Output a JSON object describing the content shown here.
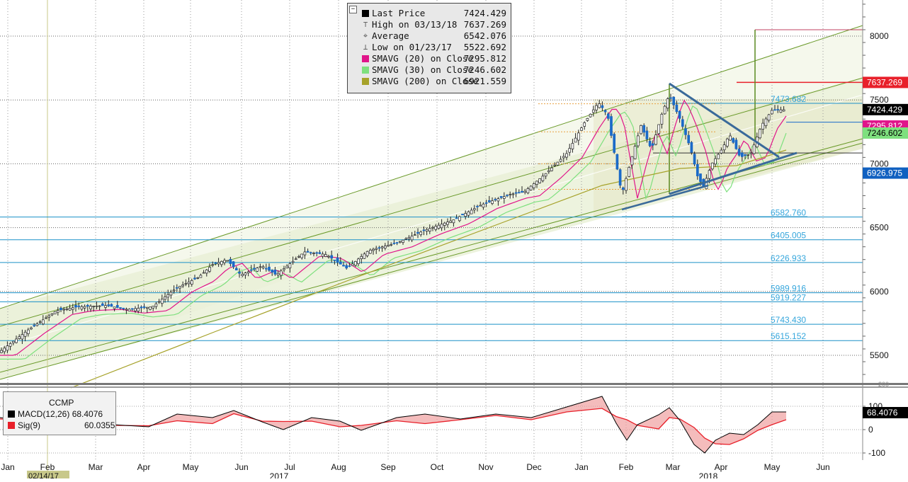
{
  "chart_data": [
    {
      "type": "candlestick",
      "ticker": "CCMP",
      "ylim": [
        5200,
        8250
      ],
      "y_ticks": [
        5500,
        6000,
        6500,
        7000,
        7500,
        8000
      ],
      "x_labels": [
        "Jan",
        "Feb",
        "Mar",
        "Apr",
        "May",
        "Jun",
        "Jul",
        "Aug",
        "Sep",
        "Oct",
        "Nov",
        "Dec",
        "Jan",
        "Feb",
        "Mar",
        "Apr",
        "May",
        "Jun"
      ],
      "year_labels": [
        "2017",
        "2018"
      ],
      "crosshair_date": "02/14/17",
      "legend": [
        {
          "name": "Last Price",
          "value": "7424.429",
          "color": "#000000",
          "icon": "square"
        },
        {
          "name": "High on 03/13/18",
          "value": "7637.269",
          "color": "#555555",
          "icon": "high-marker"
        },
        {
          "name": "Average",
          "value": "6542.076",
          "color": "#555555",
          "icon": "average-marker"
        },
        {
          "name": "Low on 01/23/17",
          "value": "5522.692",
          "color": "#555555",
          "icon": "low-marker"
        },
        {
          "name": "SMAVG (20) on Close",
          "value": "7295.812",
          "color": "#e0158a",
          "icon": "square"
        },
        {
          "name": "SMAVG (30) on Close",
          "value": "7246.602",
          "color": "#7ee07e",
          "icon": "square"
        },
        {
          "name": "SMAVG (200) on Close",
          "value": "6921.559",
          "color": "#a6a22a",
          "icon": "square"
        }
      ],
      "right_axis_tags": [
        {
          "text": "7637.269",
          "value": 7637.269,
          "bg": "#e8202a",
          "fg": "#ffffff"
        },
        {
          "text": "7424.429",
          "value": 7424.429,
          "bg": "#000000",
          "fg": "#ffffff"
        },
        {
          "text": "7295.812",
          "value": 7295.812,
          "bg": "#e0158a",
          "fg": "#ffffff"
        },
        {
          "text": "7246.602",
          "value": 7246.602,
          "bg": "#7ee07e",
          "fg": "#000000"
        },
        {
          "text": "6926.975",
          "value": 6926.975,
          "bg": "#1060c0",
          "fg": "#ffffff"
        }
      ],
      "fib_levels": [
        {
          "text": "7473.682",
          "value": 7473.682
        },
        {
          "text": "6582.760",
          "value": 6582.76
        },
        {
          "text": "6405.005",
          "value": 6405.005
        },
        {
          "text": "6226.933",
          "value": 6226.933
        },
        {
          "text": "5989.916",
          "value": 5989.916
        },
        {
          "text": "5919.227",
          "value": 5919.227
        },
        {
          "text": "5743.430",
          "value": 5743.43
        },
        {
          "text": "5615.152",
          "value": 5615.152
        }
      ]
    },
    {
      "type": "line",
      "title": "CCMP",
      "ylim": [
        -130,
        150
      ],
      "y_ticks": [
        100,
        0,
        -100
      ],
      "y_tick_labels": [
        "100",
        "0",
        "-100"
      ],
      "series": [
        {
          "name": "MACD(12,26)",
          "value": "68.4076",
          "color": "#000000"
        },
        {
          "name": "Sig(9)",
          "value": "60.0355",
          "color": "#e8202a"
        }
      ],
      "right_axis_tag": {
        "text": "68.4076",
        "bg": "#000000",
        "fg": "#ffffff"
      },
      "top_tick_fragment": "200"
    }
  ]
}
